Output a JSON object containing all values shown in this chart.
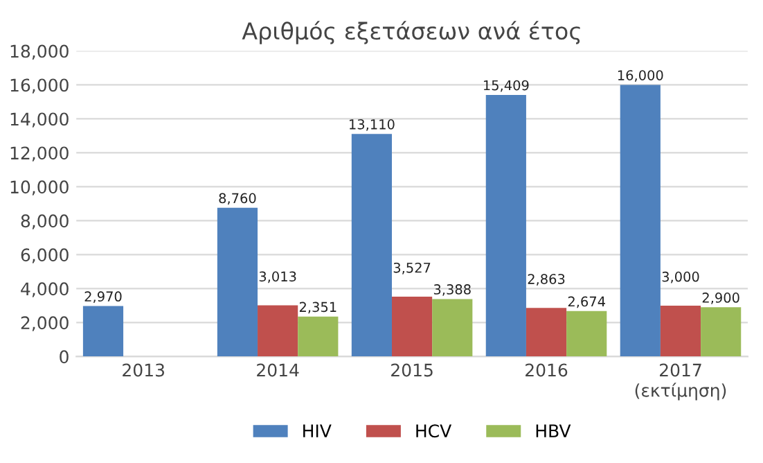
{
  "chart_data": {
    "type": "bar",
    "title": "Αριθμός εξετάσεων ανά έτος",
    "categories": [
      "2013",
      "2014",
      "2015",
      "2016",
      "2017\n(εκτίμηση)"
    ],
    "series": [
      {
        "name": "HIV",
        "color": "#4f81bd",
        "values": [
          2970,
          8760,
          13110,
          15409,
          16000
        ],
        "value_labels": [
          "2,970",
          "8,760",
          "13,110",
          "15,409",
          "16,000"
        ]
      },
      {
        "name": "HCV",
        "color": "#c0504d",
        "values": [
          null,
          3013,
          3527,
          2863,
          3000
        ],
        "value_labels": [
          null,
          "3,013",
          "3,527",
          "2,863",
          "3,000"
        ]
      },
      {
        "name": "HBV",
        "color": "#9bbb59",
        "values": [
          null,
          2351,
          3388,
          2674,
          2900
        ],
        "value_labels": [
          null,
          "2,351",
          "3,388",
          "2,674",
          "2,900"
        ]
      }
    ],
    "ylim": [
      0,
      18000
    ],
    "yticks": [
      0,
      {
        "value": 2000,
        "label": "2,000"
      },
      {
        "value": 4000,
        "label": "4,000"
      },
      {
        "value": 6000,
        "label": "6,000"
      },
      {
        "value": 8000,
        "label": "8,000"
      },
      {
        "value": 10000,
        "label": "10,000"
      },
      {
        "value": 12000,
        "label": "12,000"
      },
      {
        "value": 14000,
        "label": "14,000"
      },
      {
        "value": 16000,
        "label": "16,000"
      },
      {
        "value": 18000,
        "label": "18,000"
      }
    ],
    "grid": "y",
    "legend": "bottom"
  }
}
